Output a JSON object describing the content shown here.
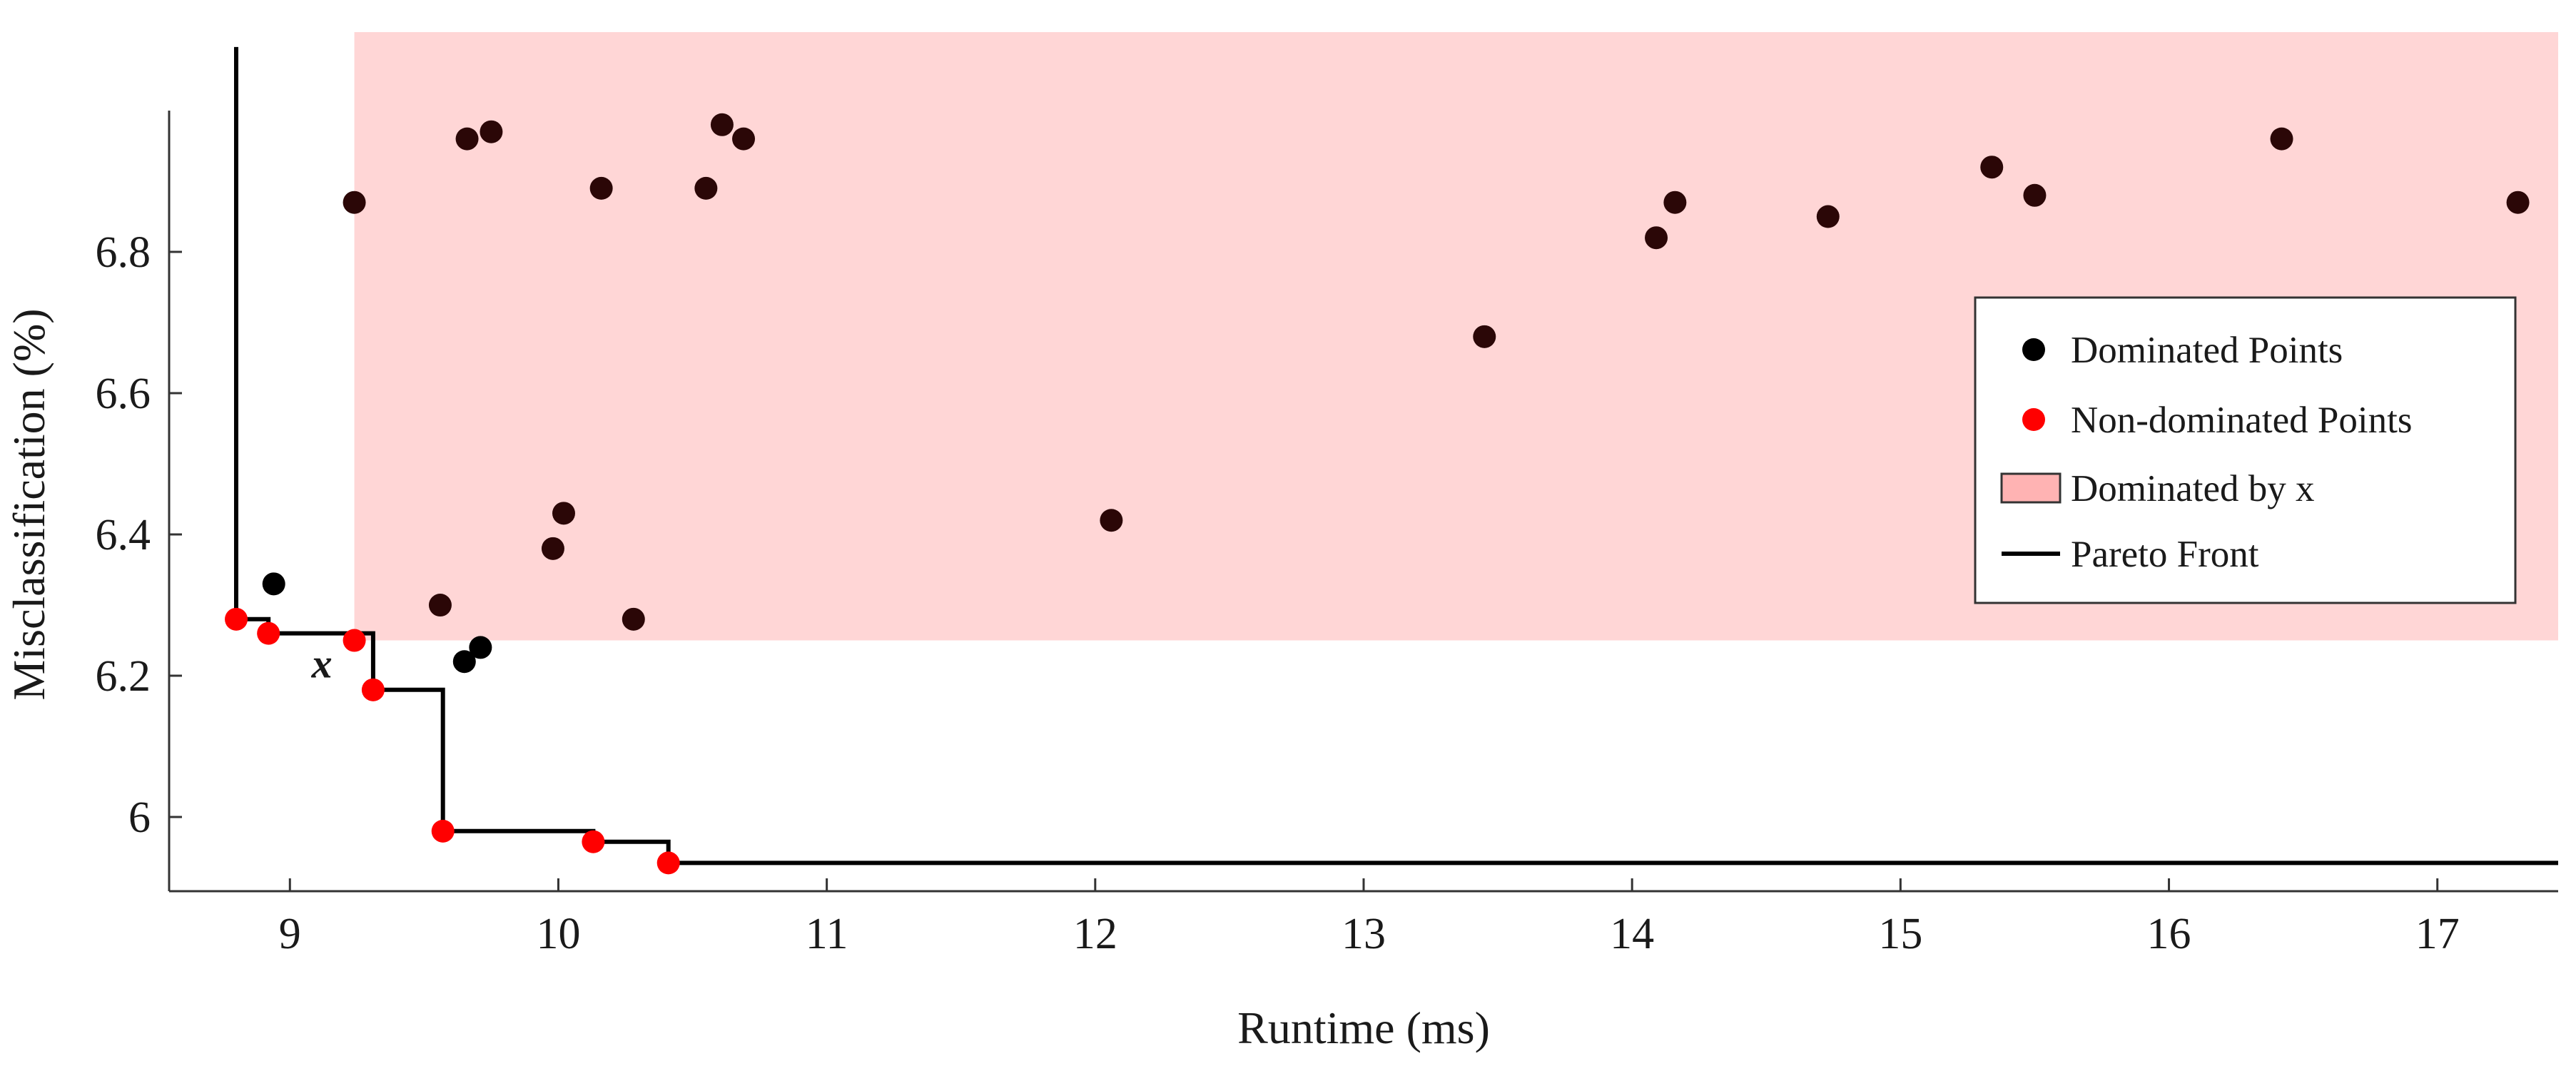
{
  "chart_data": {
    "type": "scatter",
    "xlabel": "Runtime (ms)",
    "ylabel": "Misclassification (%)",
    "xlim": [
      8.55,
      17.45
    ],
    "ylim": [
      5.895,
      7.0
    ],
    "x_ticks": [
      9,
      10,
      11,
      12,
      13,
      14,
      15,
      16,
      17
    ],
    "x_tick_labels": [
      "9",
      "10",
      "11",
      "12",
      "13",
      "14",
      "15",
      "16",
      "17"
    ],
    "y_ticks": [
      6.0,
      6.2,
      6.4,
      6.6,
      6.8
    ],
    "y_tick_labels": [
      "6",
      "6.2",
      "6.4",
      "6.6",
      "6.8"
    ],
    "grid": false,
    "legend_position": "right",
    "colors": {
      "dominated": "#000000",
      "dominated_shaded": "#2b0707",
      "non_dominated": "#ff0000",
      "region": "#ffd6d6",
      "region_legend": "#ffb3b3",
      "front": "#000000"
    },
    "legend": [
      {
        "key": "dominated",
        "label": "Dominated Points"
      },
      {
        "key": "non_dominated",
        "label": "Non-dominated Points"
      },
      {
        "key": "region",
        "label": "Dominated by x"
      },
      {
        "key": "front",
        "label": "Pareto Front"
      }
    ],
    "reference_point": {
      "label": "x",
      "x": 9.24,
      "y": 6.25
    },
    "dominated_region": {
      "x_from": 9.24,
      "y_from": 6.25
    },
    "dominated_points": [
      [
        8.94,
        6.33
      ],
      [
        9.24,
        6.87
      ],
      [
        9.56,
        6.3
      ],
      [
        9.65,
        6.22
      ],
      [
        9.66,
        6.96
      ],
      [
        9.71,
        6.24
      ],
      [
        9.75,
        6.97
      ],
      [
        9.98,
        6.38
      ],
      [
        10.02,
        6.43
      ],
      [
        10.16,
        6.89
      ],
      [
        10.28,
        6.28
      ],
      [
        10.55,
        6.89
      ],
      [
        10.61,
        6.98
      ],
      [
        10.69,
        6.96
      ],
      [
        12.06,
        6.42
      ],
      [
        13.45,
        6.68
      ],
      [
        14.09,
        6.82
      ],
      [
        14.16,
        6.87
      ],
      [
        14.73,
        6.85
      ],
      [
        15.34,
        6.92
      ],
      [
        15.5,
        6.88
      ],
      [
        16.42,
        6.96
      ],
      [
        17.3,
        6.87
      ]
    ],
    "non_dominated_points": [
      [
        8.8,
        6.28
      ],
      [
        8.92,
        6.26
      ],
      [
        9.24,
        6.25
      ],
      [
        9.31,
        6.18
      ],
      [
        9.57,
        5.98
      ],
      [
        10.13,
        5.965
      ],
      [
        10.41,
        5.935
      ]
    ],
    "pareto_front": [
      [
        8.8,
        7.09
      ],
      [
        8.8,
        6.28
      ],
      [
        8.92,
        6.28
      ],
      [
        8.92,
        6.26
      ],
      [
        9.31,
        6.26
      ],
      [
        9.31,
        6.18
      ],
      [
        9.57,
        6.18
      ],
      [
        9.57,
        5.98
      ],
      [
        10.13,
        5.98
      ],
      [
        10.13,
        5.965
      ],
      [
        10.41,
        5.965
      ],
      [
        10.41,
        5.935
      ],
      [
        17.45,
        5.935
      ]
    ]
  }
}
